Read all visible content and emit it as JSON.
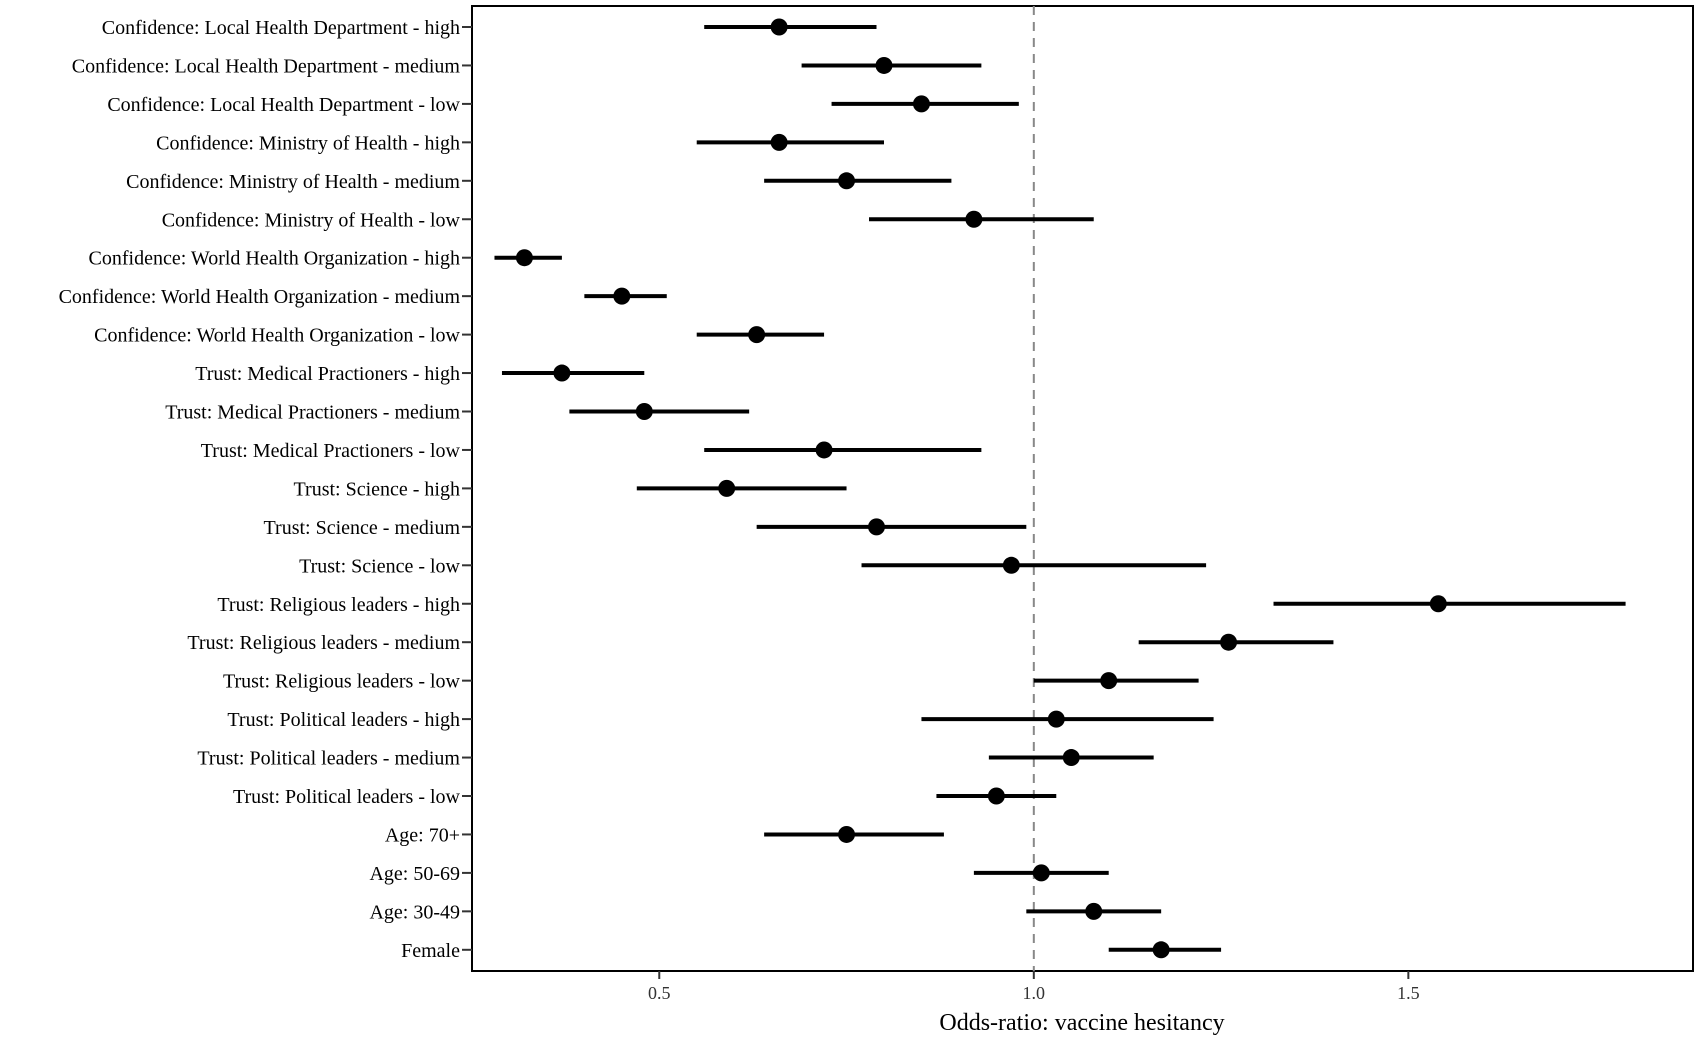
{
  "chart_data": {
    "type": "forest",
    "xlabel": "Odds-ratio: vaccine hesitancy",
    "ylabel": "",
    "title": "",
    "xlim": [
      0.25,
      1.88
    ],
    "xticks": [
      {
        "value": 0.5,
        "label": "0.5"
      },
      {
        "value": 1.0,
        "label": "1.0"
      },
      {
        "value": 1.5,
        "label": "1.5"
      }
    ],
    "reference_line": 1.0,
    "grid": false,
    "rows": [
      {
        "label": "Confidence: Local Health Department - high",
        "estimate": 0.66,
        "lower": 0.56,
        "upper": 0.79
      },
      {
        "label": "Confidence: Local Health Department - medium",
        "estimate": 0.8,
        "lower": 0.69,
        "upper": 0.93
      },
      {
        "label": "Confidence: Local Health Department - low",
        "estimate": 0.85,
        "lower": 0.73,
        "upper": 0.98
      },
      {
        "label": "Confidence: Ministry of Health - high",
        "estimate": 0.66,
        "lower": 0.55,
        "upper": 0.8
      },
      {
        "label": "Confidence: Ministry of Health - medium",
        "estimate": 0.75,
        "lower": 0.64,
        "upper": 0.89
      },
      {
        "label": "Confidence: Ministry of Health - low",
        "estimate": 0.92,
        "lower": 0.78,
        "upper": 1.08
      },
      {
        "label": "Confidence: World Health Organization - high",
        "estimate": 0.32,
        "lower": 0.28,
        "upper": 0.37
      },
      {
        "label": "Confidence: World Health Organization - medium",
        "estimate": 0.45,
        "lower": 0.4,
        "upper": 0.51
      },
      {
        "label": "Confidence: World Health Organization - low",
        "estimate": 0.63,
        "lower": 0.55,
        "upper": 0.72
      },
      {
        "label": "Trust: Medical Practioners - high",
        "estimate": 0.37,
        "lower": 0.29,
        "upper": 0.48
      },
      {
        "label": "Trust: Medical Practioners - medium",
        "estimate": 0.48,
        "lower": 0.38,
        "upper": 0.62
      },
      {
        "label": "Trust: Medical Practioners - low",
        "estimate": 0.72,
        "lower": 0.56,
        "upper": 0.93
      },
      {
        "label": "Trust: Science - high",
        "estimate": 0.59,
        "lower": 0.47,
        "upper": 0.75
      },
      {
        "label": "Trust: Science - medium",
        "estimate": 0.79,
        "lower": 0.63,
        "upper": 0.99
      },
      {
        "label": "Trust: Science - low",
        "estimate": 0.97,
        "lower": 0.77,
        "upper": 1.23
      },
      {
        "label": "Trust: Religious leaders - high",
        "estimate": 1.54,
        "lower": 1.32,
        "upper": 1.79
      },
      {
        "label": "Trust: Religious leaders - medium",
        "estimate": 1.26,
        "lower": 1.14,
        "upper": 1.4
      },
      {
        "label": "Trust: Religious leaders - low",
        "estimate": 1.1,
        "lower": 1.0,
        "upper": 1.22
      },
      {
        "label": "Trust: Political leaders - high",
        "estimate": 1.03,
        "lower": 0.85,
        "upper": 1.24
      },
      {
        "label": "Trust: Political leaders - medium",
        "estimate": 1.05,
        "lower": 0.94,
        "upper": 1.16
      },
      {
        "label": "Trust: Political leaders - low",
        "estimate": 0.95,
        "lower": 0.87,
        "upper": 1.03
      },
      {
        "label": "Age: 70+",
        "estimate": 0.75,
        "lower": 0.64,
        "upper": 0.88
      },
      {
        "label": "Age: 50-69",
        "estimate": 1.01,
        "lower": 0.92,
        "upper": 1.1
      },
      {
        "label": "Age: 30-49",
        "estimate": 1.08,
        "lower": 0.99,
        "upper": 1.17
      },
      {
        "label": "Female",
        "estimate": 1.17,
        "lower": 1.1,
        "upper": 1.25
      }
    ]
  }
}
